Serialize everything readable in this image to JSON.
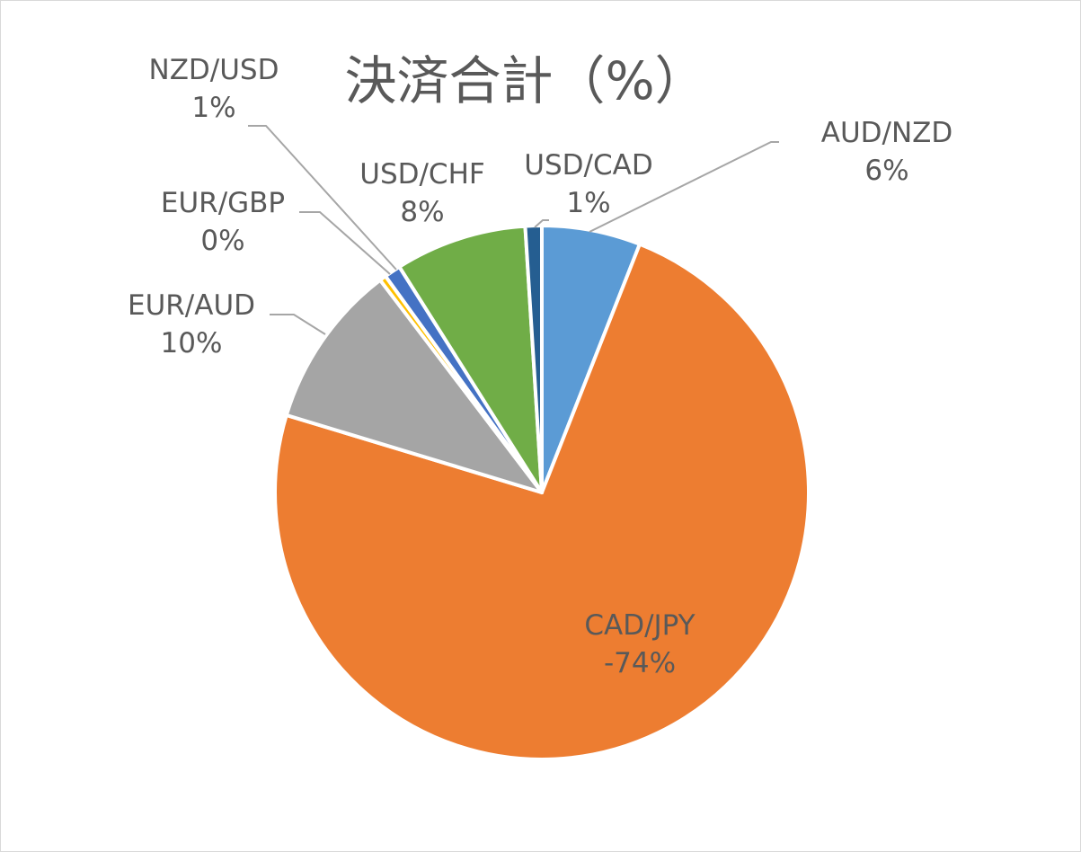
{
  "chart_data": {
    "type": "pie",
    "title": "決済合計（%）",
    "slices": [
      {
        "name": "AUD/NZD",
        "value": 6,
        "label": "6%",
        "color": "#5b9bd5"
      },
      {
        "name": "CAD/JPY",
        "value": -74,
        "label": "-74%",
        "color": "#ed7d31"
      },
      {
        "name": "EUR/AUD",
        "value": 10,
        "label": "10%",
        "color": "#a5a5a5"
      },
      {
        "name": "EUR/GBP",
        "value": 0,
        "label": "0%",
        "color": "#ffc000"
      },
      {
        "name": "NZD/USD",
        "value": 1,
        "label": "1%",
        "color": "#4472c4"
      },
      {
        "name": "USD/CHF",
        "value": 8,
        "label": "8%",
        "color": "#70ad47"
      },
      {
        "name": "USD/CAD",
        "value": 1,
        "label": "1%",
        "color": "#255e91"
      }
    ]
  }
}
